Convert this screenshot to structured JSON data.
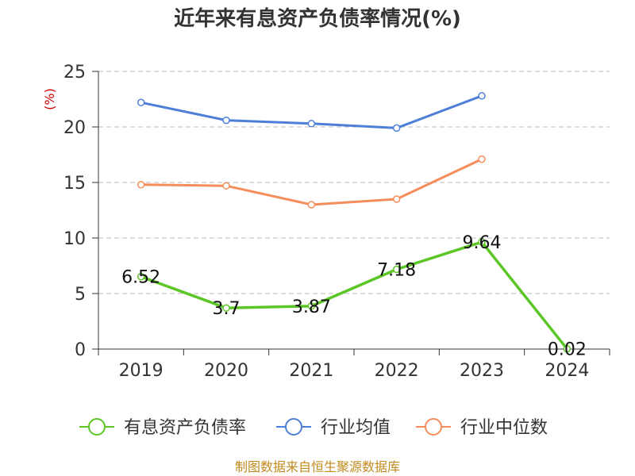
{
  "chart_data": {
    "type": "line",
    "title": "近年来有息资产负债率情况(%)",
    "ylabel": "(%)",
    "categories": [
      "2019",
      "2020",
      "2021",
      "2022",
      "2023",
      "2024"
    ],
    "ylim": [
      0,
      25
    ],
    "yticks": [
      "0",
      "5",
      "10",
      "15",
      "20",
      "25"
    ],
    "grid": true,
    "legend_position": "bottom",
    "series": [
      {
        "name": "有息资产负债率",
        "color": "#5cc627",
        "values": [
          6.52,
          3.7,
          3.87,
          7.18,
          9.64,
          0.02
        ],
        "labels": [
          "6.52",
          "3.7",
          "3.87",
          "7.18",
          "9.64",
          "0.02"
        ]
      },
      {
        "name": "行业均值",
        "color": "#4e7fd8",
        "values": [
          22.2,
          20.6,
          20.3,
          19.9,
          22.8,
          null
        ]
      },
      {
        "name": "行业中位数",
        "color": "#f58d5a",
        "values": [
          14.8,
          14.7,
          13.0,
          13.5,
          17.1,
          null
        ]
      }
    ]
  },
  "colors": {
    "unit_label": "#cc0000",
    "source_text": "#c08a1e"
  },
  "source": "制图数据来自恒生聚源数据库"
}
